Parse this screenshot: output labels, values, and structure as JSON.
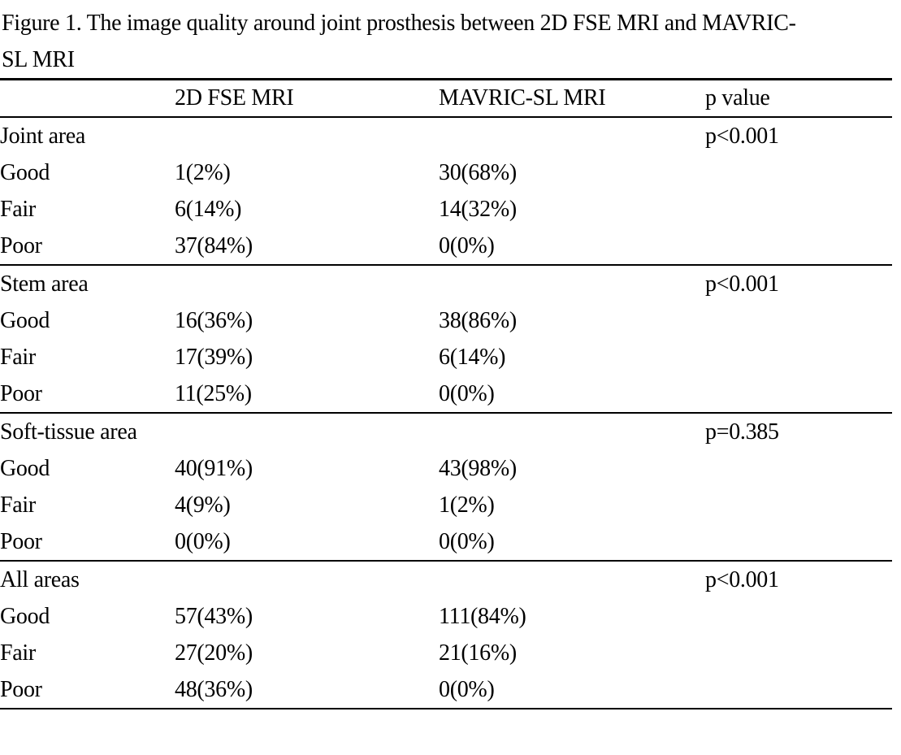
{
  "figure": {
    "title_line1": "Figure 1. The image quality around joint prosthesis between 2D FSE MRI and MAVRIC-",
    "title_line2": "SL MRI"
  },
  "table": {
    "headers": {
      "col1": "",
      "col2": "2D FSE MRI",
      "col3": "MAVRIC-SL MRI",
      "col4": "p value"
    },
    "sections": [
      {
        "label": "Joint area",
        "p_value": "p<0.001",
        "rows": [
          {
            "rating": "Good",
            "fse_2d": "1(2%)",
            "mavric_sl": "30(68%)"
          },
          {
            "rating": "Fair",
            "fse_2d": "6(14%)",
            "mavric_sl": "14(32%)"
          },
          {
            "rating": "Poor",
            "fse_2d": "37(84%)",
            "mavric_sl": "0(0%)"
          }
        ]
      },
      {
        "label": "Stem area",
        "p_value": "p<0.001",
        "rows": [
          {
            "rating": "Good",
            "fse_2d": "16(36%)",
            "mavric_sl": "38(86%)"
          },
          {
            "rating": "Fair",
            "fse_2d": "17(39%)",
            "mavric_sl": "6(14%)"
          },
          {
            "rating": "Poor",
            "fse_2d": "11(25%)",
            "mavric_sl": "0(0%)"
          }
        ]
      },
      {
        "label": "Soft-tissue area",
        "p_value": "p=0.385",
        "rows": [
          {
            "rating": "Good",
            "fse_2d": "40(91%)",
            "mavric_sl": "43(98%)"
          },
          {
            "rating": "Fair",
            "fse_2d": "4(9%)",
            "mavric_sl": "1(2%)"
          },
          {
            "rating": "Poor",
            "fse_2d": "0(0%)",
            "mavric_sl": "0(0%)"
          }
        ]
      },
      {
        "label": "All areas",
        "p_value": "p<0.001",
        "rows": [
          {
            "rating": "Good",
            "fse_2d": "57(43%)",
            "mavric_sl": "111(84%)"
          },
          {
            "rating": "Fair",
            "fse_2d": "27(20%)",
            "mavric_sl": "21(16%)"
          },
          {
            "rating": "Poor",
            "fse_2d": "48(36%)",
            "mavric_sl": "0(0%)"
          }
        ]
      }
    ]
  },
  "colors": {
    "text": "#000000",
    "background": "#ffffff",
    "rule": "#000000"
  }
}
